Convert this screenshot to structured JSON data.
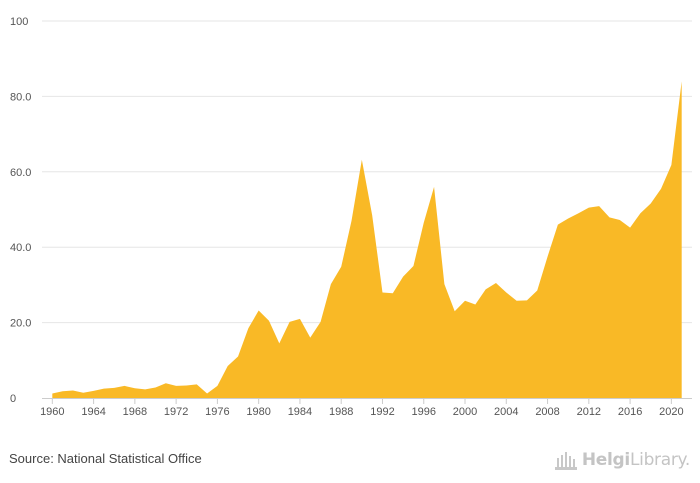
{
  "chart_data": {
    "type": "area",
    "title": "",
    "xlabel": "",
    "ylabel": "",
    "x": [
      1960,
      1961,
      1962,
      1963,
      1964,
      1965,
      1966,
      1967,
      1968,
      1969,
      1970,
      1971,
      1972,
      1973,
      1974,
      1975,
      1976,
      1977,
      1978,
      1979,
      1980,
      1981,
      1982,
      1983,
      1984,
      1985,
      1986,
      1987,
      1988,
      1989,
      1990,
      1991,
      1992,
      1993,
      1994,
      1995,
      1996,
      1997,
      1998,
      1999,
      2000,
      2001,
      2002,
      2003,
      2004,
      2005,
      2006,
      2007,
      2008,
      2009,
      2010,
      2011,
      2012,
      2013,
      2014,
      2015,
      2016,
      2017,
      2018,
      2019,
      2020,
      2021
    ],
    "values": [
      1.2,
      1.8,
      2.0,
      1.4,
      1.9,
      2.5,
      2.7,
      3.2,
      2.6,
      2.3,
      2.8,
      3.9,
      3.2,
      3.3,
      3.6,
      1.2,
      3.2,
      8.5,
      11.0,
      18.5,
      23.2,
      20.5,
      14.5,
      20.2,
      21.0,
      16.0,
      20.2,
      30.2,
      34.8,
      47.0,
      63.2,
      48.5,
      28.0,
      27.8,
      32.2,
      35.0,
      46.5,
      56.0,
      30.2,
      23.0,
      25.8,
      24.8,
      28.8,
      30.5,
      28.0,
      25.8,
      25.9,
      28.5,
      37.5,
      46.0,
      47.6,
      49.0,
      50.5,
      50.9,
      47.9,
      47.2,
      45.2,
      49.0,
      51.6,
      55.5,
      61.8,
      84.0
    ],
    "xticks": [
      "1960",
      "1964",
      "1968",
      "1972",
      "1976",
      "1980",
      "1984",
      "1988",
      "1992",
      "1996",
      "2000",
      "2004",
      "2008",
      "2012",
      "2016",
      "2020"
    ],
    "yticks": [
      "0",
      "20.0",
      "40.0",
      "60.0",
      "80.0",
      "100"
    ],
    "ylim": [
      0,
      100
    ],
    "xlim": [
      1959,
      2022
    ],
    "grid": true,
    "area_color": "#f9b926",
    "grid_color": "#e6e6e6",
    "axis_color": "#cccccc"
  },
  "footer": {
    "source": "Source: National Statistical Office",
    "logo_text_bold": "Helgi",
    "logo_text_regular": "Library.",
    "logo_icon": "building-icon"
  }
}
